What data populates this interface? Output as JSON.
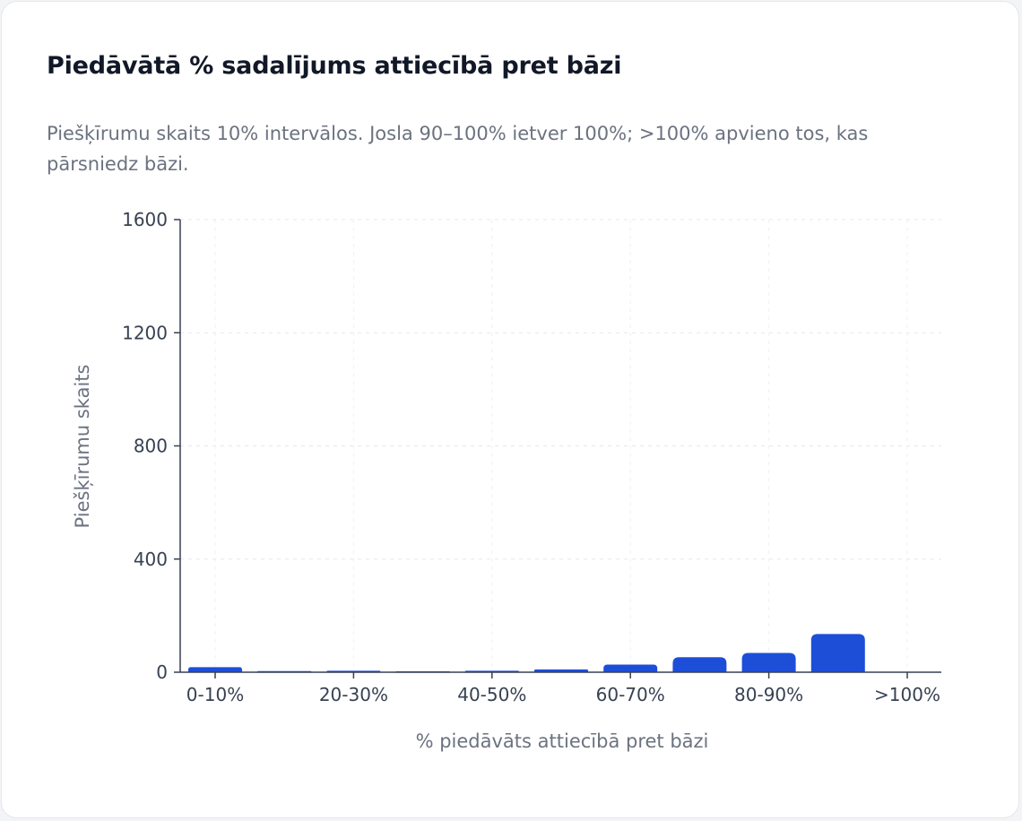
{
  "card": {
    "title": "Piedāvātā % sadalījums attiecībā pret bāzi",
    "subtitle": "Piešķīrumu skaits 10% intervālos. Josla 90–100% ietver 100%; >100% apvieno tos, kas pārsniedz bāzi."
  },
  "chart_data": {
    "type": "bar",
    "categories": [
      "0-10%",
      "10-20%",
      "20-30%",
      "30-40%",
      "40-50%",
      "50-60%",
      "60-70%",
      "70-80%",
      "80-90%",
      "90-100%",
      ">100%"
    ],
    "tick_labels": [
      "0-10%",
      "20-30%",
      "40-50%",
      "60-70%",
      "80-90%",
      ">100%"
    ],
    "values": [
      18,
      4,
      5,
      3,
      5,
      10,
      27,
      53,
      68,
      135,
      0
    ],
    "xlabel": "% piedāvāts attiecībā pret bāzi",
    "ylabel": "Piešķīrumu skaits",
    "ylim": [
      0,
      1600
    ],
    "yticks": [
      "0",
      "400",
      "800",
      "1200",
      "1600"
    ],
    "grid": true,
    "bar_color": "#1d4ed8"
  }
}
